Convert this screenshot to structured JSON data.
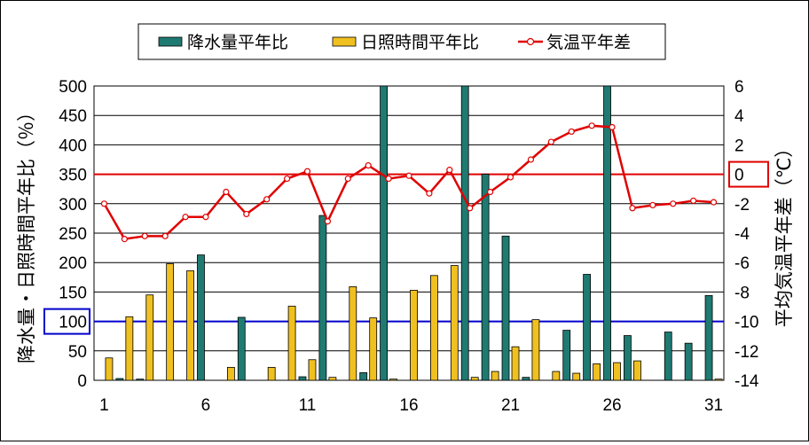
{
  "chart_data": {
    "type": "bar",
    "title": "",
    "xlabel": "",
    "ylabel": "降水量・日照時間平年比（％）",
    "y2label": "平均気温平年差（℃）",
    "x": [
      1,
      2,
      3,
      4,
      5,
      6,
      7,
      8,
      9,
      10,
      11,
      12,
      13,
      14,
      15,
      16,
      17,
      18,
      19,
      20,
      21,
      22,
      23,
      24,
      25,
      26,
      27,
      28,
      29,
      30,
      31
    ],
    "x_tick_labels": [
      "1",
      "6",
      "11",
      "16",
      "21",
      "26",
      "31"
    ],
    "ylim": [
      0,
      500
    ],
    "y_ticks": [
      "0",
      "50",
      "100",
      "150",
      "200",
      "250",
      "300",
      "350",
      "400",
      "450",
      "500"
    ],
    "y2lim": [
      -14,
      6
    ],
    "y2_ticks": [
      "-14",
      "-12",
      "-10",
      "-8",
      "-6",
      "-4",
      "-2",
      "0",
      "2",
      "4",
      "6"
    ],
    "grid": true,
    "legend_position": "top",
    "reference_lines": [
      {
        "axis": "y",
        "value": 100,
        "color": "#0000cc",
        "highlight_label": "100"
      },
      {
        "axis": "y2",
        "value": 0,
        "color": "#e00000",
        "highlight_label": "0"
      }
    ],
    "series": [
      {
        "name": "降水量平年比",
        "type": "bar",
        "axis": "y",
        "color": "#1f7a72",
        "values": [
          0,
          3,
          2,
          0,
          0,
          213,
          0,
          107,
          0,
          0,
          6,
          280,
          0,
          13,
          500,
          0,
          0,
          0,
          500,
          350,
          245,
          5,
          0,
          85,
          180,
          500,
          76,
          0,
          82,
          63,
          144
        ]
      },
      {
        "name": "日照時間平年比",
        "type": "bar",
        "axis": "y",
        "color": "#f0c020",
        "values": [
          38,
          108,
          145,
          198,
          186,
          0,
          22,
          0,
          22,
          126,
          35,
          5,
          159,
          106,
          2,
          153,
          178,
          195,
          5,
          15,
          57,
          103,
          15,
          12,
          28,
          30,
          33,
          0,
          0,
          0,
          2
        ]
      },
      {
        "name": "気温平年差",
        "type": "line",
        "axis": "y2",
        "color": "#e00000",
        "values": [
          -2,
          -4.4,
          -4.2,
          -4.2,
          -2.9,
          -2.9,
          -1.2,
          -2.7,
          -1.7,
          -0.3,
          0.2,
          -3.2,
          -0.3,
          0.6,
          -0.3,
          -0.1,
          -1.3,
          0.3,
          -2.3,
          -1.2,
          -0.2,
          1,
          2.2,
          2.9,
          3.3,
          3.2,
          -2.3,
          -2.1,
          -2,
          -1.8,
          -1.9
        ]
      }
    ]
  }
}
